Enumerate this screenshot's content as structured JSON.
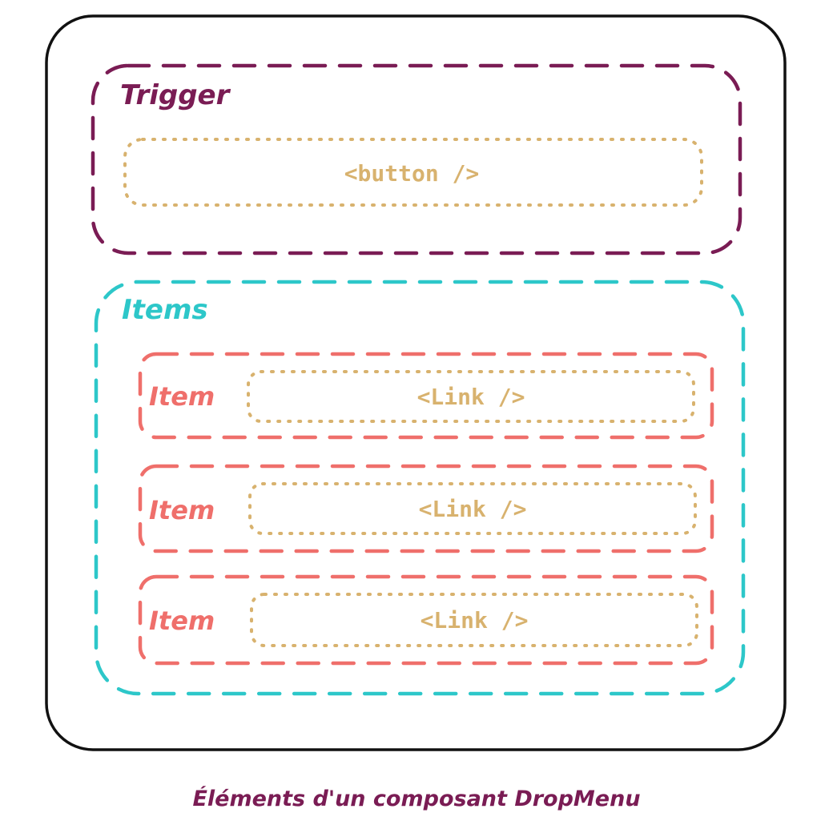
{
  "colors": {
    "outline": "#111111",
    "trigger": "#7a1c54",
    "items": "#2dc7c9",
    "item": "#ef6f6b",
    "element": "#d8b26e",
    "caption": "#7a1c54"
  },
  "trigger": {
    "label": "Trigger",
    "element": "<button />"
  },
  "items": {
    "label": "Items",
    "list": [
      {
        "label": "Item",
        "element": "<Link />"
      },
      {
        "label": "Item",
        "element": "<Link />"
      },
      {
        "label": "Item",
        "element": "<Link />"
      }
    ]
  },
  "caption": "Éléments d'un composant DropMenu"
}
